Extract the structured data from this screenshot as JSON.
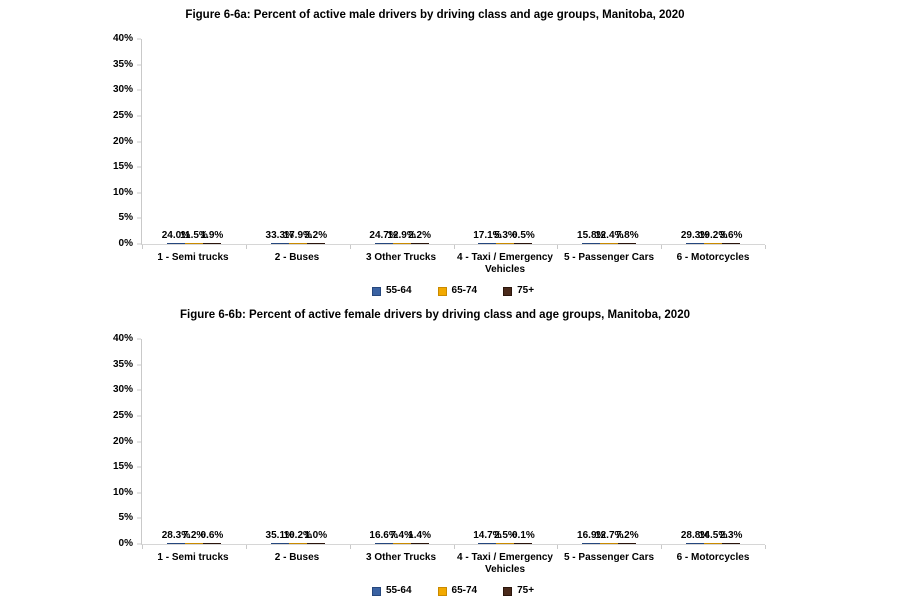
{
  "page": {
    "background": "#ffffff"
  },
  "chart_data": [
    {
      "type": "bar",
      "title": "Figure 6-6a: Percent of active male drivers by driving class and age groups, Manitoba, 2020",
      "categories": [
        "1 - Semi trucks",
        "2 - Buses",
        "3 Other Trucks",
        "4 - Taxi / Emergency\nVehicles",
        "5 - Passenger Cars",
        "6 - Motorcycles"
      ],
      "series": [
        {
          "name": "55-64",
          "color": "#3a62a2",
          "border": "#26477d",
          "values": [
            24.0,
            33.3,
            24.7,
            17.1,
            15.8,
            29.3
          ]
        },
        {
          "name": "65-74",
          "color": "#f2a900",
          "border": "#c98a00",
          "values": [
            11.5,
            17.9,
            12.9,
            5.3,
            12.4,
            19.2
          ]
        },
        {
          "name": "75+",
          "color": "#4a2a1b",
          "border": "#2b150b",
          "values": [
            1.9,
            3.2,
            2.2,
            0.5,
            7.8,
            3.6
          ]
        }
      ],
      "data_labels": true,
      "data_label_format": "0.0%",
      "y_axis": {
        "min": 0,
        "max": 40,
        "step": 5,
        "tick_labels": [
          "0%",
          "5%",
          "10%",
          "15%",
          "20%",
          "25%",
          "30%",
          "35%",
          "40%"
        ]
      },
      "grid": false,
      "legend_position": "bottom"
    },
    {
      "type": "bar",
      "title": "Figure 6-6b: Percent of active female drivers by driving class and age groups, Manitoba, 2020",
      "categories": [
        "1 - Semi trucks",
        "2 - Buses",
        "3 Other Trucks",
        "4 - Taxi / Emergency\nVehicles",
        "5 - Passenger Cars",
        "6 - Motorcycles"
      ],
      "series": [
        {
          "name": "55-64",
          "color": "#3a62a2",
          "border": "#26477d",
          "values": [
            28.3,
            35.1,
            16.6,
            14.7,
            16.9,
            28.8
          ]
        },
        {
          "name": "65-74",
          "color": "#f2a900",
          "border": "#c98a00",
          "values": [
            7.2,
            10.2,
            7.4,
            2.5,
            12.7,
            14.5
          ]
        },
        {
          "name": "75+",
          "color": "#4a2a1b",
          "border": "#2b150b",
          "values": [
            0.6,
            1.0,
            1.4,
            0.1,
            7.2,
            2.3
          ]
        }
      ],
      "data_labels": true,
      "data_label_format": "0.0%",
      "y_axis": {
        "min": 0,
        "max": 40,
        "step": 5,
        "tick_labels": [
          "0%",
          "5%",
          "10%",
          "15%",
          "20%",
          "25%",
          "30%",
          "35%",
          "40%"
        ]
      },
      "grid": false,
      "legend_position": "bottom"
    }
  ]
}
